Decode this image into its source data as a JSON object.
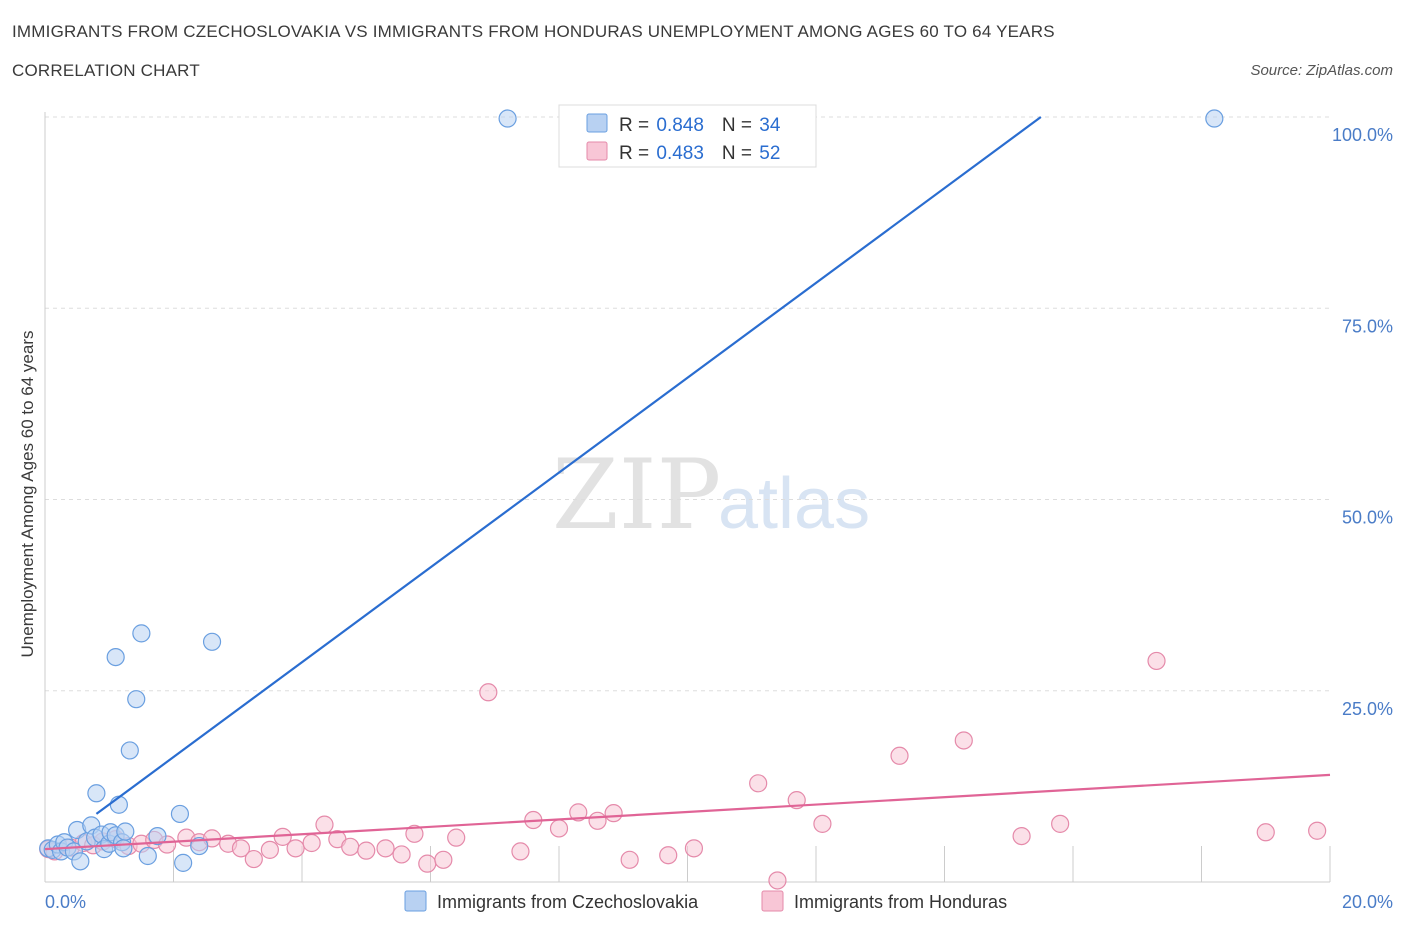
{
  "chart_data": {
    "type": "scatter",
    "title": "IMMIGRANTS FROM CZECHOSLOVAKIA VS IMMIGRANTS FROM HONDURAS UNEMPLOYMENT AMONG AGES 60 TO 64 YEARS",
    "subtitle": "CORRELATION CHART",
    "source": "Source: ZipAtlas.com",
    "watermark": {
      "zip": "ZIP",
      "atlas": "atlas"
    },
    "xlabel": "",
    "ylabel": "Unemployment Among Ages 60 to 64 years",
    "xlim": [
      0,
      20
    ],
    "ylim": [
      0,
      100
    ],
    "x_tick_labels": [
      {
        "value": 0,
        "label": "0.0%"
      },
      {
        "value": 20,
        "label": "20.0%"
      }
    ],
    "y_tick_labels": [
      {
        "value": 25,
        "label": "25.0%"
      },
      {
        "value": 50,
        "label": "50.0%"
      },
      {
        "value": 75,
        "label": "75.0%"
      },
      {
        "value": 100,
        "label": "100.0%"
      }
    ],
    "grid": true,
    "legend": {
      "placement": "top-center",
      "entries": [
        {
          "r_label": "R = ",
          "r_value": "0.848",
          "n_label": "N = ",
          "n_value": "34"
        },
        {
          "r_label": "R = ",
          "r_value": "0.483",
          "n_label": "N = ",
          "n_value": "52"
        }
      ]
    },
    "series": [
      {
        "name": "Immigrants from Czechoslovakia",
        "color": "#6a9fe0",
        "fill": "#b8d1f2",
        "trend_color": "#2a6dd0",
        "trend": {
          "x": [
            0.8,
            15.5
          ],
          "y": [
            8.9,
            100
          ]
        },
        "points": [
          {
            "x": 0.05,
            "y": 4.4
          },
          {
            "x": 0.12,
            "y": 4.2
          },
          {
            "x": 0.2,
            "y": 4.9
          },
          {
            "x": 0.25,
            "y": 4.0
          },
          {
            "x": 0.3,
            "y": 5.2
          },
          {
            "x": 0.35,
            "y": 4.5
          },
          {
            "x": 0.45,
            "y": 4.0
          },
          {
            "x": 0.5,
            "y": 6.8
          },
          {
            "x": 0.55,
            "y": 2.7
          },
          {
            "x": 0.65,
            "y": 5.3
          },
          {
            "x": 0.72,
            "y": 7.4
          },
          {
            "x": 0.78,
            "y": 5.8
          },
          {
            "x": 0.8,
            "y": 11.6
          },
          {
            "x": 0.88,
            "y": 6.2
          },
          {
            "x": 0.92,
            "y": 4.3
          },
          {
            "x": 1.0,
            "y": 5.0
          },
          {
            "x": 1.02,
            "y": 6.5
          },
          {
            "x": 1.1,
            "y": 6.1
          },
          {
            "x": 1.1,
            "y": 29.4
          },
          {
            "x": 1.15,
            "y": 10.1
          },
          {
            "x": 1.2,
            "y": 5.2
          },
          {
            "x": 1.22,
            "y": 4.4
          },
          {
            "x": 1.25,
            "y": 6.6
          },
          {
            "x": 1.32,
            "y": 17.2
          },
          {
            "x": 1.42,
            "y": 23.9
          },
          {
            "x": 1.5,
            "y": 32.5
          },
          {
            "x": 1.6,
            "y": 3.4
          },
          {
            "x": 1.75,
            "y": 6.0
          },
          {
            "x": 2.1,
            "y": 8.9
          },
          {
            "x": 2.15,
            "y": 2.5
          },
          {
            "x": 2.4,
            "y": 4.7
          },
          {
            "x": 2.6,
            "y": 31.4
          },
          {
            "x": 7.2,
            "y": 99.8
          },
          {
            "x": 18.2,
            "y": 99.8
          }
        ]
      },
      {
        "name": "Immigrants from Honduras",
        "color": "#e58aaa",
        "fill": "#f8c6d6",
        "trend_color": "#e06496",
        "trend": {
          "x": [
            0,
            20
          ],
          "y": [
            4.3,
            14.0
          ]
        },
        "points": [
          {
            "x": 0.05,
            "y": 4.3
          },
          {
            "x": 0.15,
            "y": 4.0
          },
          {
            "x": 0.4,
            "y": 4.5
          },
          {
            "x": 0.6,
            "y": 5.1
          },
          {
            "x": 0.75,
            "y": 4.8
          },
          {
            "x": 0.9,
            "y": 5.3
          },
          {
            "x": 1.1,
            "y": 5.6
          },
          {
            "x": 1.3,
            "y": 4.7
          },
          {
            "x": 1.5,
            "y": 5.0
          },
          {
            "x": 1.7,
            "y": 5.5
          },
          {
            "x": 1.9,
            "y": 4.9
          },
          {
            "x": 2.2,
            "y": 5.8
          },
          {
            "x": 2.4,
            "y": 5.2
          },
          {
            "x": 2.6,
            "y": 5.7
          },
          {
            "x": 2.85,
            "y": 5.0
          },
          {
            "x": 3.05,
            "y": 4.4
          },
          {
            "x": 3.25,
            "y": 3.0
          },
          {
            "x": 3.5,
            "y": 4.2
          },
          {
            "x": 3.7,
            "y": 5.9
          },
          {
            "x": 3.9,
            "y": 4.4
          },
          {
            "x": 4.15,
            "y": 5.1
          },
          {
            "x": 4.35,
            "y": 7.5
          },
          {
            "x": 4.55,
            "y": 5.6
          },
          {
            "x": 4.75,
            "y": 4.6
          },
          {
            "x": 5.0,
            "y": 4.1
          },
          {
            "x": 5.3,
            "y": 4.4
          },
          {
            "x": 5.55,
            "y": 3.6
          },
          {
            "x": 5.75,
            "y": 6.3
          },
          {
            "x": 5.95,
            "y": 2.4
          },
          {
            "x": 6.2,
            "y": 2.9
          },
          {
            "x": 6.4,
            "y": 5.8
          },
          {
            "x": 6.9,
            "y": 24.8
          },
          {
            "x": 7.4,
            "y": 4.0
          },
          {
            "x": 7.6,
            "y": 8.1
          },
          {
            "x": 8.0,
            "y": 7.0
          },
          {
            "x": 8.3,
            "y": 9.1
          },
          {
            "x": 8.6,
            "y": 8.0
          },
          {
            "x": 8.85,
            "y": 9.0
          },
          {
            "x": 9.1,
            "y": 2.9
          },
          {
            "x": 9.7,
            "y": 3.5
          },
          {
            "x": 10.1,
            "y": 4.4
          },
          {
            "x": 11.1,
            "y": 12.9
          },
          {
            "x": 11.4,
            "y": 0.2
          },
          {
            "x": 11.7,
            "y": 10.7
          },
          {
            "x": 12.1,
            "y": 7.6
          },
          {
            "x": 13.3,
            "y": 16.5
          },
          {
            "x": 14.3,
            "y": 18.5
          },
          {
            "x": 15.2,
            "y": 6.0
          },
          {
            "x": 15.8,
            "y": 7.6
          },
          {
            "x": 17.3,
            "y": 28.9
          },
          {
            "x": 19.0,
            "y": 6.5
          },
          {
            "x": 19.8,
            "y": 6.7
          }
        ]
      }
    ]
  }
}
